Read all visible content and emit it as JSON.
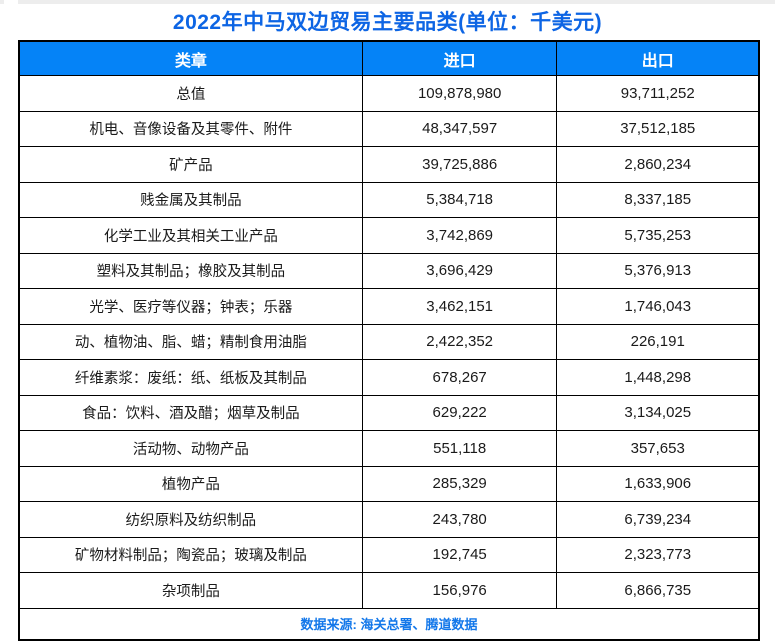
{
  "title": "2022年中马双边贸易主要品类(单位：千美元)",
  "colors": {
    "title_blue": "#0d65e4",
    "header_bg": "#0583f7",
    "header_text": "#ffffff",
    "source_text": "#1277ea",
    "border": "#000000",
    "top_strip": "#ededed"
  },
  "table": {
    "headers": [
      "类章",
      "进口",
      "出口"
    ],
    "rows": [
      {
        "category": "总值",
        "import": "109,878,980",
        "export": "93,711,252"
      },
      {
        "category": "机电、音像设备及其零件、附件",
        "import": "48,347,597",
        "export": "37,512,185"
      },
      {
        "category": "矿产品",
        "import": "39,725,886",
        "export": "2,860,234"
      },
      {
        "category": "贱金属及其制品",
        "import": "5,384,718",
        "export": "8,337,185"
      },
      {
        "category": "化学工业及其相关工业产品",
        "import": "3,742,869",
        "export": "5,735,253"
      },
      {
        "category": "塑料及其制品；橡胶及其制品",
        "import": "3,696,429",
        "export": "5,376,913"
      },
      {
        "category": "光学、医疗等仪器；钟表；乐器",
        "import": "3,462,151",
        "export": "1,746,043"
      },
      {
        "category": "动、植物油、脂、蜡；精制食用油脂",
        "import": "2,422,352",
        "export": "226,191"
      },
      {
        "category": "纤维素浆：废纸：纸、纸板及其制品",
        "import": "678,267",
        "export": "1,448,298"
      },
      {
        "category": "食品：饮料、酒及醋；烟草及制品",
        "import": "629,222",
        "export": "3,134,025"
      },
      {
        "category": "活动物、动物产品",
        "import": "551,118",
        "export": "357,653"
      },
      {
        "category": "植物产品",
        "import": "285,329",
        "export": "1,633,906"
      },
      {
        "category": "纺织原料及纺织制品",
        "import": "243,780",
        "export": "6,739,234"
      },
      {
        "category": "矿物材料制品；陶瓷品；玻璃及制品",
        "import": "192,745",
        "export": "2,323,773"
      },
      {
        "category": "杂项制品",
        "import": "156,976",
        "export": "6,866,735"
      }
    ],
    "source": "数据来源: 海关总署、腾道数据"
  },
  "chart_data": {
    "type": "table",
    "title": "2022年中马双边贸易主要品类(单位：千美元)",
    "unit": "千美元",
    "columns": [
      "类章",
      "进口",
      "出口"
    ],
    "categories": [
      "总值",
      "机电、音像设备及其零件、附件",
      "矿产品",
      "贱金属及其制品",
      "化学工业及其相关工业产品",
      "塑料及其制品；橡胶及其制品",
      "光学、医疗等仪器；钟表；乐器",
      "动、植物油、脂、蜡；精制食用油脂",
      "纤维素浆：废纸：纸、纸板及其制品",
      "食品：饮料、酒及醋；烟草及制品",
      "活动物、动物产品",
      "植物产品",
      "纺织原料及纺织制品",
      "矿物材料制品；陶瓷品；玻璃及制品",
      "杂项制品"
    ],
    "series": [
      {
        "name": "进口",
        "values": [
          109878980,
          48347597,
          39725886,
          5384718,
          3742869,
          3696429,
          3462151,
          2422352,
          678267,
          629222,
          551118,
          285329,
          243780,
          192745,
          156976
        ]
      },
      {
        "name": "出口",
        "values": [
          93711252,
          37512185,
          2860234,
          8337185,
          5735253,
          5376913,
          1746043,
          226191,
          1448298,
          3134025,
          357653,
          1633906,
          6739234,
          2323773,
          6866735
        ]
      }
    ],
    "source": "数据来源: 海关总署、腾道数据"
  }
}
